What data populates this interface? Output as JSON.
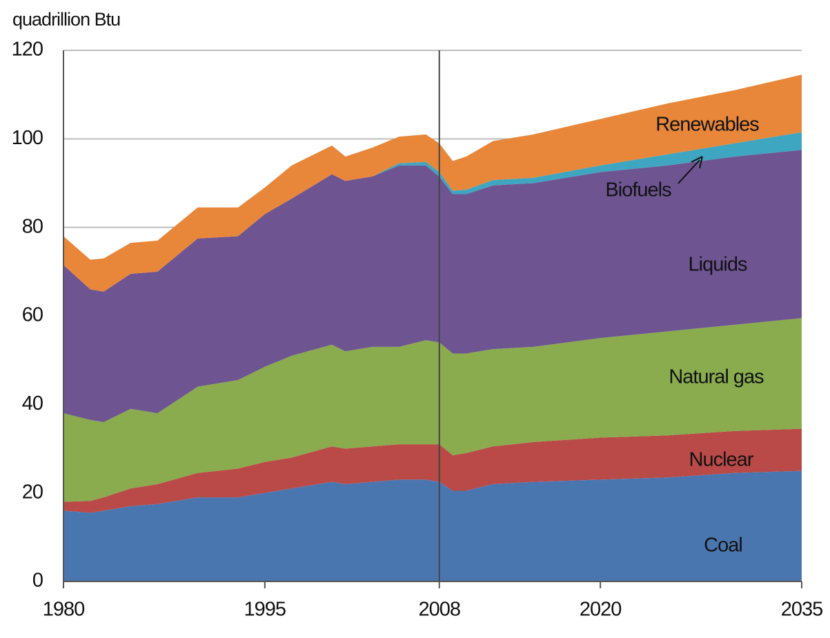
{
  "chart_data": {
    "type": "stacked-area",
    "y_axis_label": "quadrillion Btu",
    "x": [
      1980,
      1982,
      1983,
      1985,
      1987,
      1990,
      1993,
      1995,
      1997,
      2000,
      2001,
      2003,
      2005,
      2007,
      2008,
      2009,
      2010,
      2012,
      2015,
      2020,
      2025,
      2030,
      2035
    ],
    "series": [
      {
        "name": "Coal",
        "color": "#4a76b0",
        "values": [
          16,
          15.5,
          16,
          17,
          17.5,
          19,
          19,
          20,
          21,
          22.5,
          22,
          22.5,
          23,
          23,
          22.5,
          20.5,
          20.5,
          22,
          22.5,
          23,
          23.5,
          24.5,
          25
        ]
      },
      {
        "name": "Nuclear",
        "color": "#b94a48",
        "values": [
          2,
          2.7,
          3,
          4,
          4.5,
          5.5,
          6.5,
          7,
          7,
          8,
          8,
          8,
          8,
          8,
          8.5,
          8,
          8.5,
          8.5,
          9,
          9.5,
          9.5,
          9.5,
          9.5
        ]
      },
      {
        "name": "Natural gas",
        "color": "#8aab4e",
        "values": [
          20,
          18.3,
          17,
          18,
          16,
          19.5,
          20,
          21.5,
          23,
          23,
          22,
          22.5,
          22,
          23.5,
          23,
          23,
          22.5,
          22,
          21.5,
          22.5,
          23.5,
          24,
          25
        ]
      },
      {
        "name": "Liquids",
        "color": "#6e5592",
        "values": [
          33.5,
          29.5,
          29.5,
          30.5,
          32,
          33.5,
          32.5,
          34.5,
          35.5,
          38.5,
          38.5,
          38.5,
          41,
          39.5,
          37.5,
          36,
          36,
          37,
          37,
          37.5,
          37.5,
          38,
          38
        ]
      },
      {
        "name": "Biofuels",
        "color": "#3ea6c0",
        "values": [
          0,
          0,
          0,
          0,
          0,
          0,
          0,
          0,
          0,
          0,
          0,
          0,
          0.5,
          0.8,
          1,
          0.8,
          1,
          1.2,
          1.2,
          1.5,
          2.5,
          3,
          4
        ]
      },
      {
        "name": "Renewables",
        "color": "#e8873a",
        "values": [
          6.5,
          6.7,
          7.5,
          7,
          7,
          7,
          6.5,
          6,
          7.5,
          6.5,
          5.5,
          6.5,
          6,
          6.2,
          6.5,
          6.7,
          7.5,
          8.8,
          9.8,
          10.5,
          11.5,
          12,
          13
        ]
      }
    ],
    "xlim": [
      1980,
      2035
    ],
    "xticks": [
      1980,
      1995,
      2008,
      2020,
      2035
    ],
    "ylim": [
      0,
      120
    ],
    "yticks": [
      0,
      20,
      40,
      60,
      80,
      100,
      120
    ],
    "grid": true
  }
}
